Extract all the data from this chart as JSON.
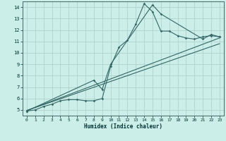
{
  "title": "",
  "xlabel": "Humidex (Indice chaleur)",
  "bg_color": "#cceee8",
  "grid_color": "#aaccc8",
  "line_color": "#336666",
  "xlim": [
    -0.5,
    23.5
  ],
  "ylim": [
    4.5,
    14.5
  ],
  "xticks": [
    0,
    1,
    2,
    3,
    4,
    5,
    6,
    7,
    8,
    9,
    10,
    11,
    12,
    13,
    14,
    15,
    16,
    17,
    18,
    19,
    20,
    21,
    22,
    23
  ],
  "yticks": [
    5,
    6,
    7,
    8,
    9,
    10,
    11,
    12,
    13,
    14
  ],
  "series1_x": [
    0,
    1,
    2,
    3,
    4,
    5,
    6,
    7,
    8,
    9,
    10,
    11,
    12,
    13,
    14,
    15,
    16,
    17,
    18,
    19,
    20,
    21,
    22,
    23
  ],
  "series1_y": [
    4.9,
    5.0,
    5.3,
    5.5,
    5.8,
    5.9,
    5.9,
    5.8,
    5.8,
    6.0,
    8.8,
    10.5,
    11.1,
    12.5,
    14.3,
    13.6,
    11.9,
    11.9,
    11.5,
    11.3,
    11.2,
    11.4,
    11.5,
    11.4
  ],
  "series2_x": [
    0,
    8,
    9,
    10,
    15,
    16,
    21,
    22,
    23
  ],
  "series2_y": [
    4.9,
    7.6,
    6.8,
    9.0,
    14.2,
    13.4,
    11.2,
    11.6,
    11.4
  ],
  "trend1_x": [
    0,
    23
  ],
  "trend1_y": [
    4.95,
    11.3
  ],
  "trend2_x": [
    0,
    23
  ],
  "trend2_y": [
    4.95,
    10.8
  ]
}
